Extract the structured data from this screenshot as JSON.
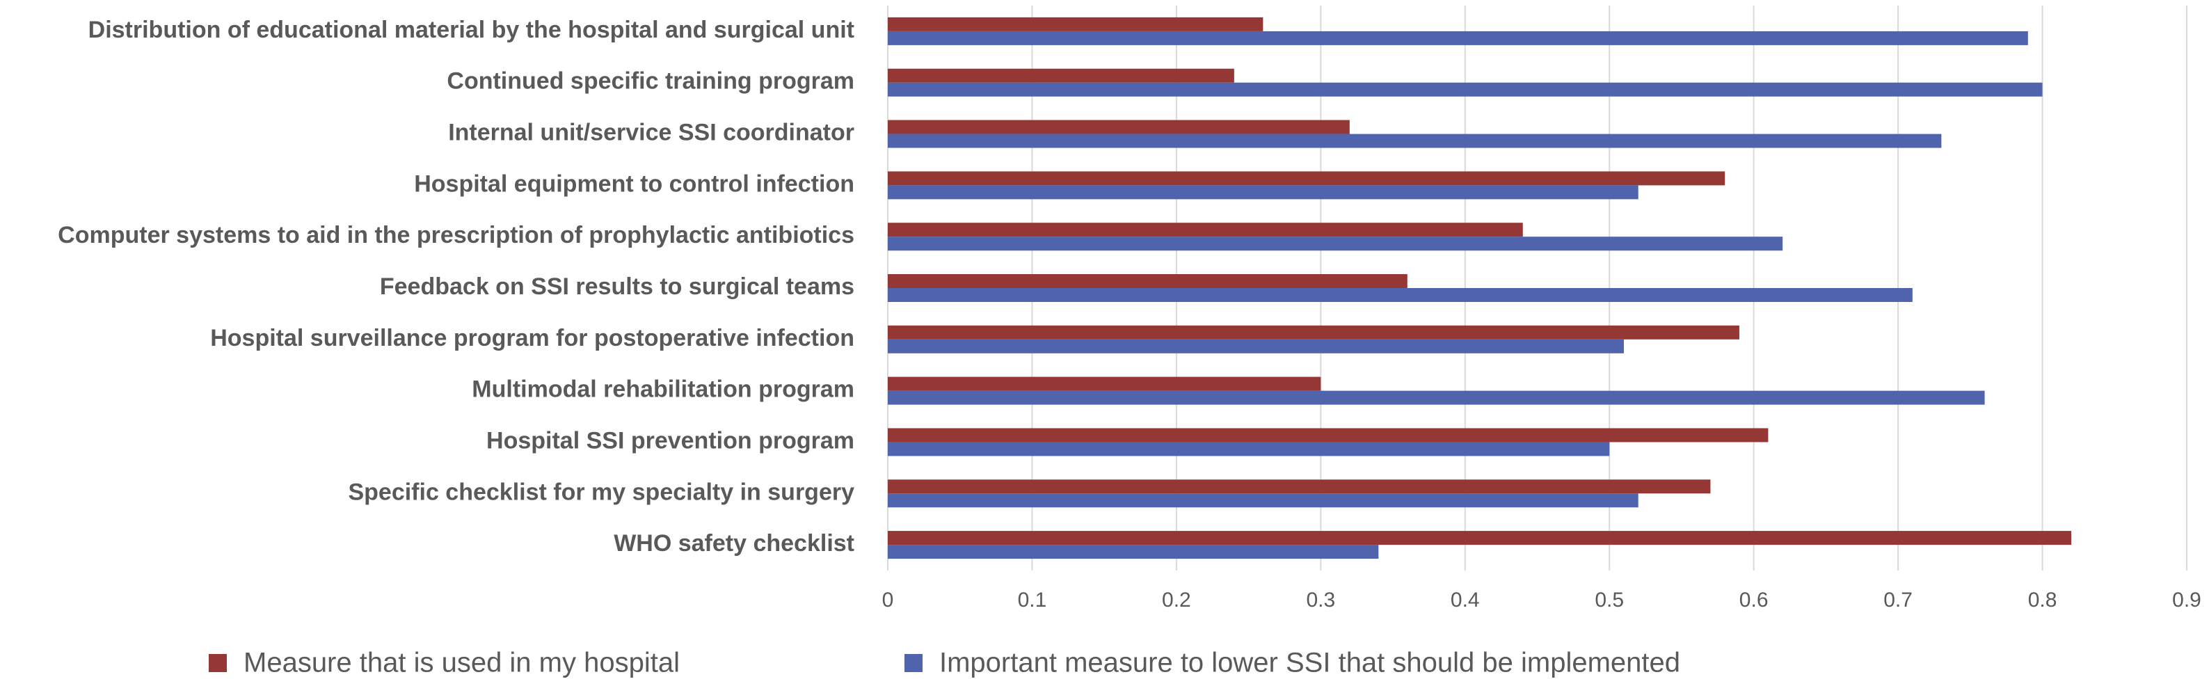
{
  "chart_data": {
    "type": "bar",
    "orientation": "horizontal",
    "categories": [
      "Distribution of educational material by the hospital and surgical unit",
      "Continued specific training program",
      "Internal unit/service SSI coordinator",
      "Hospital equipment to control infection",
      "Computer systems to aid in the prescription of prophylactic antibiotics",
      "Feedback on SSI results to surgical teams",
      "Hospital surveillance program for postoperative infection",
      "Multimodal rehabilitation program",
      "Hospital SSI prevention program",
      "Specific checklist for my specialty in surgery",
      "WHO safety checklist"
    ],
    "series": [
      {
        "name": "Measure that is used in my hospital",
        "color": "#953735",
        "values": [
          0.26,
          0.24,
          0.32,
          0.58,
          0.44,
          0.36,
          0.59,
          0.3,
          0.61,
          0.57,
          0.82
        ]
      },
      {
        "name": "Important measure to lower SSI that should be implemented",
        "color": "#4f64ad",
        "values": [
          0.79,
          0.8,
          0.73,
          0.52,
          0.62,
          0.71,
          0.51,
          0.76,
          0.5,
          0.52,
          0.34
        ]
      }
    ],
    "xlim": [
      0,
      0.9
    ],
    "xticks": [
      0,
      0.1,
      0.2,
      0.3,
      0.4,
      0.5,
      0.6,
      0.7,
      0.8,
      0.9
    ],
    "grid": true,
    "legend": "bottom"
  }
}
